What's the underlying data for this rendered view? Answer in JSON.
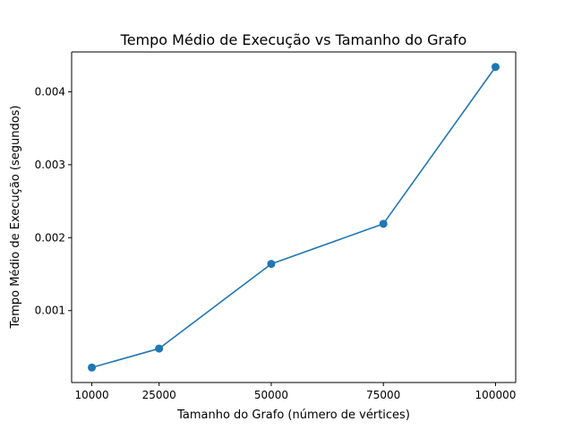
{
  "chart_data": {
    "type": "line",
    "title": "Tempo Médio de Execução vs Tamanho do Grafo",
    "xlabel": "Tamanho do Grafo (número de vértices)",
    "ylabel": "Tempo Médio de Execução (segundos)",
    "x": [
      10000,
      25000,
      50000,
      75000,
      100000
    ],
    "series": [
      {
        "values": [
          0.00022,
          0.00048,
          0.00164,
          0.00219,
          0.00434
        ],
        "color": "#1f77b4",
        "marker": "circle"
      }
    ],
    "xticks": [
      10000,
      25000,
      50000,
      75000,
      100000
    ],
    "xtick_labels": [
      "10000",
      "25000",
      "50000",
      "75000",
      "100000"
    ],
    "yticks": [
      0.001,
      0.002,
      0.003,
      0.004
    ],
    "ytick_labels": [
      "0.001",
      "0.002",
      "0.003",
      "0.004"
    ],
    "xlim": [
      5500,
      104500
    ],
    "ylim": [
      1.44e-05,
      0.0045456
    ],
    "grid": false,
    "legend": "none"
  }
}
